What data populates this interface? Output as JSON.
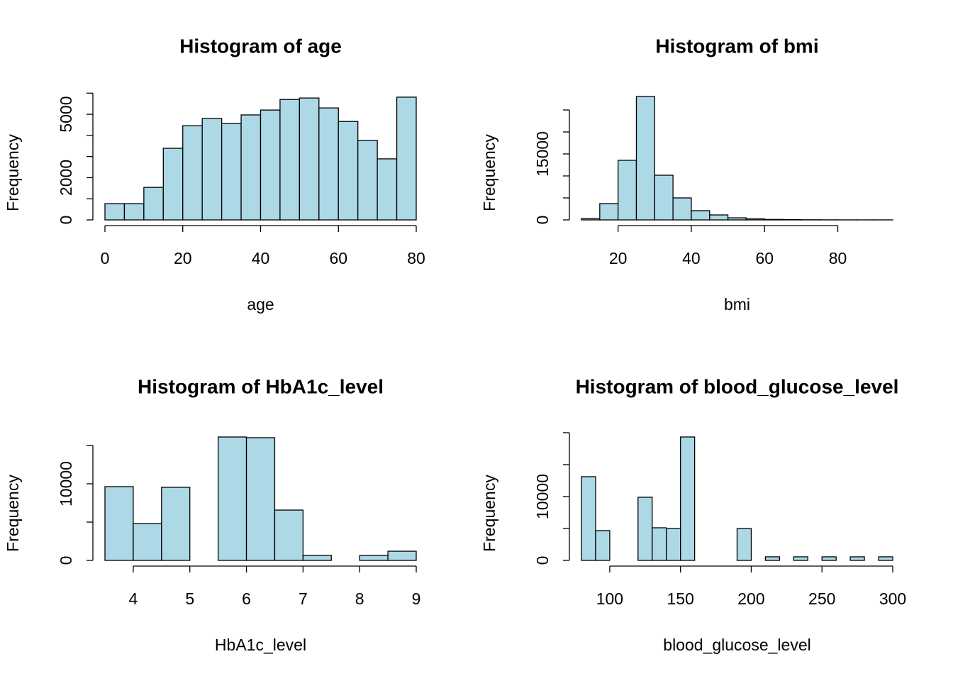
{
  "chart_data": [
    {
      "type": "histogram",
      "title": "Histogram of age",
      "xlabel": "age",
      "ylabel": "Frequency",
      "color": "#add8e6",
      "bins": [
        0,
        5,
        10,
        15,
        20,
        25,
        30,
        35,
        40,
        45,
        50,
        55,
        60,
        65,
        70,
        75,
        80
      ],
      "values": [
        770,
        770,
        1540,
        3390,
        4460,
        4800,
        4560,
        4970,
        5200,
        5700,
        5770,
        5300,
        4660,
        3760,
        2890,
        5810
      ],
      "xlim": [
        0,
        80
      ],
      "ylim": [
        0,
        6480
      ],
      "xticks": [
        0,
        20,
        40,
        60,
        80
      ],
      "yticks": [
        0,
        2000,
        5000
      ],
      "yticks_minor": [
        1000,
        3000,
        4000,
        6000
      ]
    },
    {
      "type": "histogram",
      "title": "Histogram of bmi",
      "xlabel": "bmi",
      "ylabel": "Frequency",
      "color": "#add8e6",
      "bins": [
        10,
        15,
        20,
        25,
        30,
        35,
        40,
        45,
        50,
        55,
        60,
        65,
        70,
        75,
        80,
        85,
        90,
        95
      ],
      "values": [
        320,
        3710,
        13550,
        28060,
        10160,
        5000,
        2100,
        1130,
        480,
        240,
        110,
        60,
        30,
        20,
        10,
        10,
        10
      ],
      "xlim": [
        10,
        95
      ],
      "ylim": [
        0,
        31130
      ],
      "xticks": [
        20,
        40,
        60,
        80
      ],
      "yticks": [
        0,
        15000
      ],
      "yticks_minor": [
        5000,
        10000,
        20000,
        25000
      ]
    },
    {
      "type": "histogram",
      "title": "Histogram of HbA1c_level",
      "xlabel": "HbA1c_level",
      "ylabel": "Frequency",
      "color": "#add8e6",
      "bins": [
        3.5,
        4,
        4.5,
        5,
        5.5,
        6,
        6.5,
        7,
        7.5,
        8,
        8.5,
        9
      ],
      "values": [
        9630,
        4810,
        9540,
        0,
        16110,
        16020,
        6570,
        650,
        0,
        650,
        1200
      ],
      "xlim": [
        3.5,
        9
      ],
      "ylim": [
        0,
        17870
      ],
      "xticks": [
        4,
        5,
        6,
        7,
        8,
        9
      ],
      "yticks": [
        0,
        10000
      ],
      "yticks_minor": [
        5000,
        15000
      ]
    },
    {
      "type": "histogram",
      "title": "Histogram of blood_glucose_level",
      "xlabel": "blood_glucose_level",
      "ylabel": "Frequency",
      "color": "#add8e6",
      "bins": [
        80,
        90,
        100,
        110,
        120,
        130,
        140,
        150,
        160,
        170,
        180,
        190,
        200,
        210,
        220,
        230,
        240,
        250,
        260,
        270,
        280,
        290,
        300
      ],
      "values": [
        13110,
        4670,
        0,
        0,
        9890,
        5110,
        5000,
        19330,
        0,
        0,
        0,
        5000,
        0,
        560,
        0,
        560,
        0,
        560,
        0,
        560,
        0,
        560
      ],
      "xlim": [
        80,
        300
      ],
      "ylim": [
        0,
        21440
      ],
      "xticks": [
        100,
        150,
        200,
        250,
        300
      ],
      "yticks": [
        0,
        10000
      ],
      "yticks_minor": [
        5000,
        15000,
        20000
      ]
    }
  ]
}
